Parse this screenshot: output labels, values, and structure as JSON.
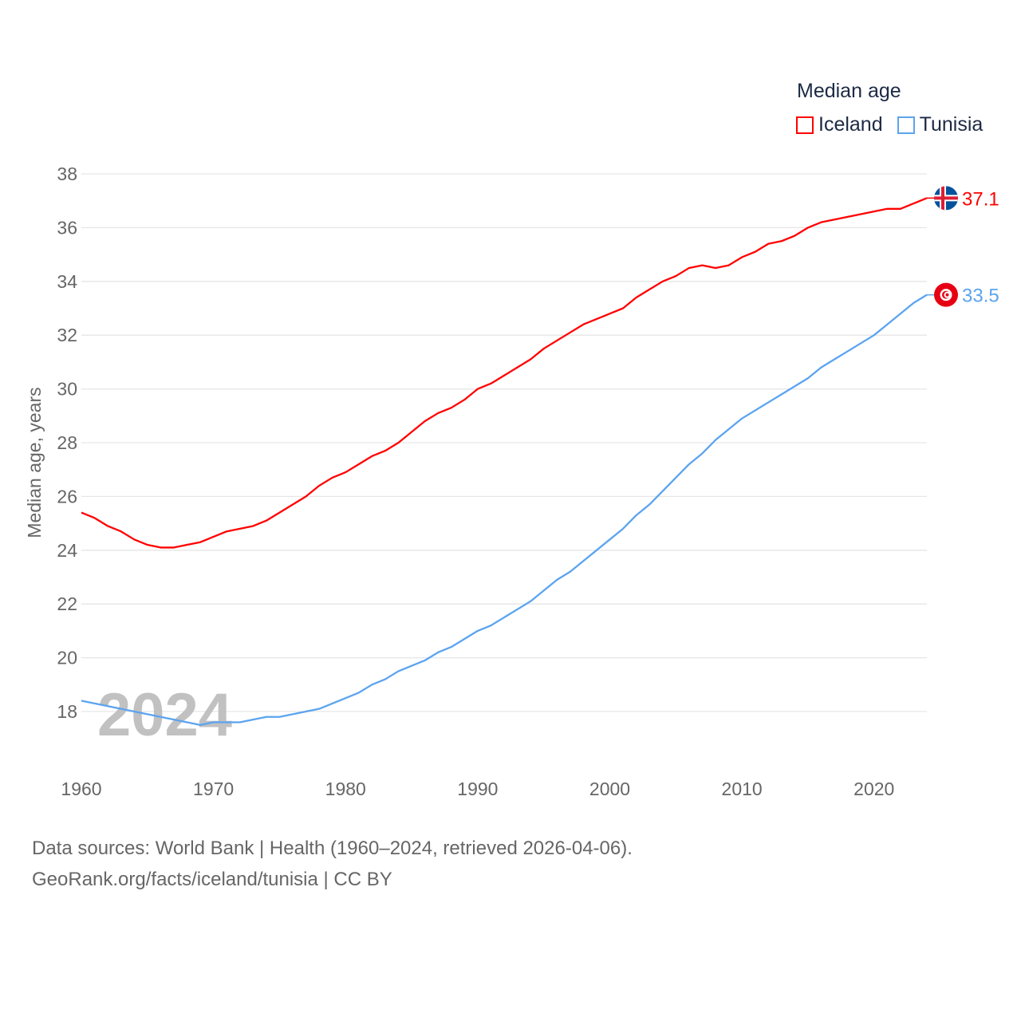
{
  "chart_data": {
    "type": "line",
    "title": "Median age",
    "ylabel": "Median age, years",
    "xlabel": "",
    "ylim": [
      18,
      38
    ],
    "xlim": [
      1960,
      2024
    ],
    "yticks": [
      18,
      20,
      22,
      24,
      26,
      28,
      30,
      32,
      34,
      36,
      38
    ],
    "xticks": [
      1960,
      1970,
      1980,
      1990,
      2000,
      2010,
      2020
    ],
    "grid": true,
    "legend_placement": "top-right",
    "watermark_year": "2024",
    "x": [
      1960,
      1961,
      1962,
      1963,
      1964,
      1965,
      1966,
      1967,
      1968,
      1969,
      1970,
      1971,
      1972,
      1973,
      1974,
      1975,
      1976,
      1977,
      1978,
      1979,
      1980,
      1981,
      1982,
      1983,
      1984,
      1985,
      1986,
      1987,
      1988,
      1989,
      1990,
      1991,
      1992,
      1993,
      1994,
      1995,
      1996,
      1997,
      1998,
      1999,
      2000,
      2001,
      2002,
      2003,
      2004,
      2005,
      2006,
      2007,
      2008,
      2009,
      2010,
      2011,
      2012,
      2013,
      2014,
      2015,
      2016,
      2017,
      2018,
      2019,
      2020,
      2021,
      2022,
      2023,
      2024
    ],
    "series": [
      {
        "name": "Iceland",
        "color": "#ff0000",
        "end_label": "37.1",
        "values": [
          25.4,
          25.2,
          24.9,
          24.7,
          24.4,
          24.2,
          24.1,
          24.1,
          24.2,
          24.3,
          24.5,
          24.7,
          24.8,
          24.9,
          25.1,
          25.4,
          25.7,
          26.0,
          26.4,
          26.7,
          26.9,
          27.2,
          27.5,
          27.7,
          28.0,
          28.4,
          28.8,
          29.1,
          29.3,
          29.6,
          30.0,
          30.2,
          30.5,
          30.8,
          31.1,
          31.5,
          31.8,
          32.1,
          32.4,
          32.6,
          32.8,
          33.0,
          33.4,
          33.7,
          34.0,
          34.2,
          34.5,
          34.6,
          34.5,
          34.6,
          34.9,
          35.1,
          35.4,
          35.5,
          35.7,
          36.0,
          36.2,
          36.3,
          36.4,
          36.5,
          36.6,
          36.7,
          36.7,
          36.9,
          37.1
        ]
      },
      {
        "name": "Tunisia",
        "color": "#5ba4ef",
        "end_label": "33.5",
        "values": [
          18.4,
          18.3,
          18.2,
          18.1,
          18.0,
          17.9,
          17.8,
          17.7,
          17.6,
          17.5,
          17.6,
          17.6,
          17.6,
          17.7,
          17.8,
          17.8,
          17.9,
          18.0,
          18.1,
          18.3,
          18.5,
          18.7,
          19.0,
          19.2,
          19.5,
          19.7,
          19.9,
          20.2,
          20.4,
          20.7,
          21.0,
          21.2,
          21.5,
          21.8,
          22.1,
          22.5,
          22.9,
          23.2,
          23.6,
          24.0,
          24.4,
          24.8,
          25.3,
          25.7,
          26.2,
          26.7,
          27.2,
          27.6,
          28.1,
          28.5,
          28.9,
          29.2,
          29.5,
          29.8,
          30.1,
          30.4,
          30.8,
          31.1,
          31.4,
          31.7,
          32.0,
          32.4,
          32.8,
          33.2,
          33.5
        ]
      }
    ]
  },
  "source": {
    "line1": "Data sources: World Bank | Health (1960–2024, retrieved 2026-04-06).",
    "line2": "GeoRank.org/facts/iceland/tunisia | CC BY"
  }
}
